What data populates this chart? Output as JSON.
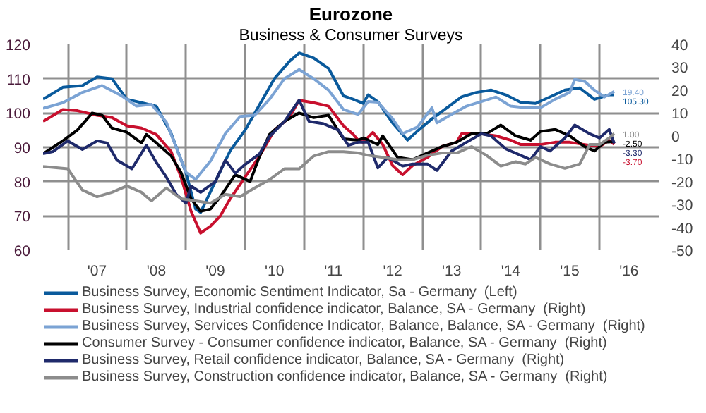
{
  "chart_data": {
    "type": "line",
    "title": "Eurozone",
    "subtitle": "Business & Consumer Surveys",
    "xlim": [
      "2006-08",
      "2017-01"
    ],
    "xticks": [
      {
        "value": "2007-01",
        "label": null
      },
      {
        "value": "2007-07",
        "label": "'07"
      },
      {
        "value": "2008-01",
        "label": null
      },
      {
        "value": "2008-07",
        "label": "'08"
      },
      {
        "value": "2009-01",
        "label": null
      },
      {
        "value": "2009-07",
        "label": "'09"
      },
      {
        "value": "2010-01",
        "label": null
      },
      {
        "value": "2010-07",
        "label": "'10"
      },
      {
        "value": "2011-01",
        "label": null
      },
      {
        "value": "2011-07",
        "label": "'11"
      },
      {
        "value": "2012-01",
        "label": null
      },
      {
        "value": "2012-07",
        "label": "'12"
      },
      {
        "value": "2013-01",
        "label": null
      },
      {
        "value": "2013-07",
        "label": "'13"
      },
      {
        "value": "2014-01",
        "label": null
      },
      {
        "value": "2014-07",
        "label": "'14"
      },
      {
        "value": "2015-01",
        "label": null
      },
      {
        "value": "2015-07",
        "label": "'15"
      },
      {
        "value": "2016-01",
        "label": null
      },
      {
        "value": "2016-07",
        "label": "'16"
      }
    ],
    "ylim": [
      60,
      120
    ],
    "yticks": [
      60,
      70,
      80,
      90,
      100,
      110,
      120
    ],
    "y2lim": [
      -50,
      40
    ],
    "y2ticks": [
      -50,
      -40,
      -30,
      -20,
      -10,
      0,
      10,
      20,
      30,
      40
    ],
    "grid": true,
    "legend": "bottom",
    "line_style": "solid",
    "series": [
      {
        "name": "Business Survey, Economic Sentiment Indicator, Sa - Germany  (Left)",
        "color": "#0a5a9c",
        "x": [
          "2006-08",
          "2006-12",
          "2007-04",
          "2007-07",
          "2007-10",
          "2008-01",
          "2008-04",
          "2008-07",
          "2008-10",
          "2009-01",
          "2009-03",
          "2009-04",
          "2009-07",
          "2009-10",
          "2010-01",
          "2010-04",
          "2010-07",
          "2010-10",
          "2010-12",
          "2011-03",
          "2011-06",
          "2011-09",
          "2011-11",
          "2012-01",
          "2012-02",
          "2012-04",
          "2012-07",
          "2012-10",
          "2012-12",
          "2013-03",
          "2013-06",
          "2013-09",
          "2013-12",
          "2014-03",
          "2014-06",
          "2014-09",
          "2014-12",
          "2015-03",
          "2015-06",
          "2015-09",
          "2015-12",
          "2016-03",
          "2016-04"
        ],
        "values": [
          104,
          107.5,
          108,
          110.5,
          110,
          104,
          103,
          102,
          94,
          82.5,
          72,
          71,
          80,
          89,
          95,
          102.5,
          110,
          115,
          117.5,
          116,
          113,
          105,
          104,
          102.8,
          105.3,
          103.3,
          97.1,
          92.1,
          94.7,
          98.3,
          101.5,
          104.7,
          106,
          106.7,
          105.3,
          103.1,
          102.8,
          104.7,
          106.7,
          107.3,
          104,
          105.3,
          105.3
        ],
        "value_labels": [
          null,
          null,
          null,
          null,
          null,
          null,
          null,
          null,
          null,
          null,
          null,
          null,
          null,
          null,
          null,
          null,
          null,
          null,
          null,
          null,
          null,
          null,
          null,
          null,
          null,
          null,
          null,
          null,
          null,
          null,
          null,
          null,
          null,
          null,
          null,
          null,
          null,
          null,
          null,
          null,
          null,
          null,
          "105.30"
        ]
      },
      {
        "name": "Business Survey, Industrial confidence indicator, Balance, SA - Germany  (Right)",
        "color": "#c8102e",
        "axis": "y2",
        "x": [
          "2006-08",
          "2006-12",
          "2007-03",
          "2007-07",
          "2007-10",
          "2008-01",
          "2008-04",
          "2008-07",
          "2008-10",
          "2008-12",
          "2009-02",
          "2009-04",
          "2009-06",
          "2009-08",
          "2009-10",
          "2010-01",
          "2010-04",
          "2010-07",
          "2010-10",
          "2010-12",
          "2011-03",
          "2011-06",
          "2011-09",
          "2011-11",
          "2011-12",
          "2012-01",
          "2012-03",
          "2012-05",
          "2012-07",
          "2012-09",
          "2012-11",
          "2013-02",
          "2013-05",
          "2013-08",
          "2013-09",
          "2014-01",
          "2014-04",
          "2014-07",
          "2014-09",
          "2015-01",
          "2015-04",
          "2015-07",
          "2015-10",
          "2016-01",
          "2016-03",
          "2016-04"
        ],
        "values": [
          6.3,
          11.5,
          11,
          9,
          8,
          4.4,
          3.4,
          0.6,
          -6.9,
          -18,
          -33,
          -42.5,
          -39.5,
          -35,
          -27.5,
          -18,
          -8.8,
          2.5,
          8,
          15.6,
          14.5,
          13,
          4.4,
          0.6,
          -1.9,
          -2.8,
          1.5,
          -3.8,
          -13,
          -17,
          -13,
          -9.4,
          -4.7,
          -2.8,
          0.9,
          0.9,
          0,
          -1.9,
          -3.8,
          -3.8,
          -2.8,
          -2.8,
          -3.8,
          -4.7,
          -1.9,
          -3.7
        ],
        "value_labels": [
          null,
          null,
          null,
          null,
          null,
          null,
          null,
          null,
          null,
          null,
          null,
          null,
          null,
          null,
          null,
          null,
          null,
          null,
          null,
          null,
          null,
          null,
          null,
          null,
          null,
          null,
          null,
          null,
          null,
          null,
          null,
          null,
          null,
          null,
          null,
          null,
          null,
          null,
          null,
          null,
          null,
          null,
          null,
          null,
          null,
          "-3.70"
        ]
      },
      {
        "name": "Business Survey, Services Confidence Indicator, Balance, Balance, SA - Germany  (Right)",
        "color": "#7ba3d4",
        "axis": "y2",
        "x": [
          "2006-08",
          "2006-12",
          "2007-04",
          "2007-08",
          "2007-12",
          "2008-03",
          "2008-06",
          "2008-09",
          "2008-11",
          "2009-01",
          "2009-03",
          "2009-06",
          "2009-09",
          "2009-12",
          "2010-03",
          "2010-06",
          "2010-09",
          "2010-12",
          "2011-03",
          "2011-06",
          "2011-09",
          "2011-12",
          "2012-02",
          "2012-04",
          "2012-07",
          "2012-09",
          "2012-12",
          "2013-03",
          "2013-04",
          "2013-07",
          "2013-10",
          "2014-01",
          "2014-04",
          "2014-07",
          "2014-10",
          "2015-01",
          "2015-04",
          "2015-07",
          "2015-08",
          "2015-10",
          "2015-12",
          "2016-02",
          "2016-04"
        ],
        "values": [
          12,
          14.5,
          19,
          22,
          17.5,
          13,
          13.8,
          6,
          -5,
          -16,
          -19,
          -11,
          1,
          8.5,
          9,
          16,
          25,
          29,
          25,
          20,
          11.5,
          9.4,
          15,
          14.7,
          7.5,
          1,
          3.8,
          12.3,
          5.7,
          9.4,
          13,
          15,
          17,
          13,
          12.3,
          12.3,
          16,
          19,
          24.7,
          23.8,
          20,
          17,
          19.4
        ],
        "value_labels": [
          null,
          null,
          null,
          null,
          null,
          null,
          null,
          null,
          null,
          null,
          null,
          null,
          null,
          null,
          null,
          null,
          null,
          null,
          null,
          null,
          null,
          null,
          null,
          null,
          null,
          null,
          null,
          null,
          null,
          null,
          null,
          null,
          null,
          null,
          null,
          null,
          null,
          null,
          null,
          null,
          null,
          null,
          "19.40"
        ]
      },
      {
        "name": "Consumer Survey - Consumer confidence indicator, Balance, SA - Germany  (Right)",
        "color": "#000000",
        "axis": "y2",
        "x": [
          "2006-08",
          "2006-12",
          "2007-03",
          "2007-06",
          "2007-08",
          "2007-10",
          "2008-01",
          "2008-04",
          "2008-05",
          "2008-07",
          "2008-10",
          "2008-12",
          "2009-02",
          "2009-04",
          "2009-06",
          "2009-08",
          "2009-11",
          "2010-02",
          "2010-04",
          "2010-06",
          "2010-09",
          "2010-12",
          "2011-03",
          "2011-06",
          "2011-09",
          "2011-12",
          "2012-01",
          "2012-04",
          "2012-05",
          "2012-08",
          "2012-11",
          "2013-02",
          "2013-05",
          "2013-08",
          "2013-11",
          "2014-02",
          "2014-05",
          "2014-08",
          "2014-11",
          "2015-01",
          "2015-04",
          "2015-07",
          "2015-10",
          "2015-12",
          "2016-02",
          "2016-04"
        ],
        "values": [
          -7.8,
          -2.2,
          2.5,
          10,
          9,
          3.4,
          1.6,
          -3.1,
          0.6,
          -3.1,
          -8.8,
          -16,
          -27.5,
          -33,
          -32,
          -26.6,
          -17,
          -20,
          -8.8,
          0.6,
          6.3,
          10,
          8,
          9,
          -1.3,
          -1.9,
          -0.9,
          -3.8,
          0,
          -9.4,
          -10.4,
          -7.5,
          -4.7,
          -2.8,
          0.9,
          0.9,
          4.7,
          0,
          -1.9,
          1.9,
          2.8,
          0,
          -4.7,
          -6.6,
          -2.8,
          -2.5
        ],
        "value_labels": [
          null,
          null,
          null,
          null,
          null,
          null,
          null,
          null,
          null,
          null,
          null,
          null,
          null,
          null,
          null,
          null,
          null,
          null,
          null,
          null,
          null,
          null,
          null,
          null,
          null,
          null,
          null,
          null,
          null,
          null,
          null,
          null,
          null,
          null,
          null,
          null,
          null,
          null,
          null,
          null,
          null,
          null,
          null,
          null,
          null,
          "-2.50"
        ]
      },
      {
        "name": "Business Survey, Retail confidence indicator, Balance, SA - Germany  (Right)",
        "color": "#1f2a6b",
        "axis": "y2",
        "x": [
          "2006-08",
          "2006-10",
          "2007-01",
          "2007-04",
          "2007-07",
          "2007-09",
          "2007-11",
          "2008-02",
          "2008-05",
          "2008-07",
          "2008-09",
          "2008-11",
          "2009-01",
          "2009-02",
          "2009-04",
          "2009-07",
          "2009-09",
          "2009-11",
          "2010-01",
          "2010-04",
          "2010-06",
          "2010-09",
          "2010-12",
          "2011-02",
          "2011-05",
          "2011-08",
          "2011-10",
          "2011-12",
          "2012-02",
          "2012-04",
          "2012-06",
          "2012-09",
          "2012-11",
          "2013-02",
          "2013-04",
          "2013-07",
          "2013-10",
          "2014-01",
          "2014-03",
          "2014-06",
          "2014-09",
          "2014-11",
          "2015-01",
          "2015-03",
          "2015-06",
          "2015-08",
          "2015-11",
          "2016-01",
          "2016-03",
          "2016-04"
        ],
        "values": [
          -7.8,
          -6.9,
          -2.2,
          -5.9,
          -2.2,
          -3.1,
          -10.6,
          -14.4,
          -4.1,
          -11.6,
          -18,
          -25.6,
          -29.4,
          -21.9,
          -24.7,
          -20,
          -10.6,
          -16.3,
          -12.5,
          -7.8,
          -0.3,
          6.3,
          15.6,
          6.3,
          5.3,
          2.5,
          -4.1,
          -2.8,
          -2.8,
          -14,
          -9.4,
          -13.2,
          -12.3,
          -12.3,
          -15.1,
          -6.6,
          -2.8,
          0.9,
          0,
          -5.7,
          -8.5,
          -10.4,
          -4.7,
          -6.6,
          -0.9,
          4.7,
          0.9,
          -0.9,
          2.8,
          -3.3
        ],
        "value_labels": [
          null,
          null,
          null,
          null,
          null,
          null,
          null,
          null,
          null,
          null,
          null,
          null,
          null,
          null,
          null,
          null,
          null,
          null,
          null,
          null,
          null,
          null,
          null,
          null,
          null,
          null,
          null,
          null,
          null,
          null,
          null,
          null,
          null,
          null,
          null,
          null,
          null,
          null,
          null,
          null,
          null,
          null,
          null,
          null,
          null,
          null,
          null,
          null,
          null,
          "-3.30"
        ]
      },
      {
        "name": "Business Survey, Construction confidence indicator, Balance, SA - Germany  (Right)",
        "color": "#8c8c8c",
        "axis": "y2",
        "x": [
          "2006-08",
          "2007-01",
          "2007-04",
          "2007-07",
          "2007-10",
          "2008-01",
          "2008-04",
          "2008-06",
          "2008-09",
          "2008-12",
          "2009-03",
          "2009-06",
          "2009-09",
          "2009-12",
          "2010-03",
          "2010-06",
          "2010-09",
          "2010-12",
          "2011-03",
          "2011-06",
          "2011-09",
          "2011-12",
          "2012-02",
          "2012-05",
          "2012-08",
          "2012-11",
          "2013-02",
          "2013-05",
          "2013-08",
          "2013-11",
          "2014-02",
          "2014-05",
          "2014-08",
          "2014-10",
          "2014-12",
          "2015-03",
          "2015-06",
          "2015-09",
          "2015-11",
          "2016-01",
          "2016-03",
          "2016-04"
        ],
        "values": [
          -13.4,
          -14.4,
          -23.7,
          -26.6,
          -24.7,
          -21.9,
          -24.7,
          -28.4,
          -22.8,
          -27.5,
          -28.4,
          -29.4,
          -25.6,
          -26.6,
          -22.8,
          -19.1,
          -14.4,
          -14.4,
          -8.8,
          -6.9,
          -6.9,
          -7.5,
          -8.5,
          -9.4,
          -10.4,
          -10.4,
          -8.5,
          -7.5,
          -7.5,
          -4.7,
          -8.5,
          -13.2,
          -11.3,
          -12.3,
          -9.4,
          -12.3,
          -14.2,
          -12.3,
          -3.8,
          -3.8,
          -0.9,
          1.0
        ],
        "value_labels": [
          null,
          null,
          null,
          null,
          null,
          null,
          null,
          null,
          null,
          null,
          null,
          null,
          null,
          null,
          null,
          null,
          null,
          null,
          null,
          null,
          null,
          null,
          null,
          null,
          null,
          null,
          null,
          null,
          null,
          null,
          null,
          null,
          null,
          null,
          null,
          null,
          null,
          null,
          null,
          null,
          null,
          "1.00"
        ]
      }
    ]
  }
}
